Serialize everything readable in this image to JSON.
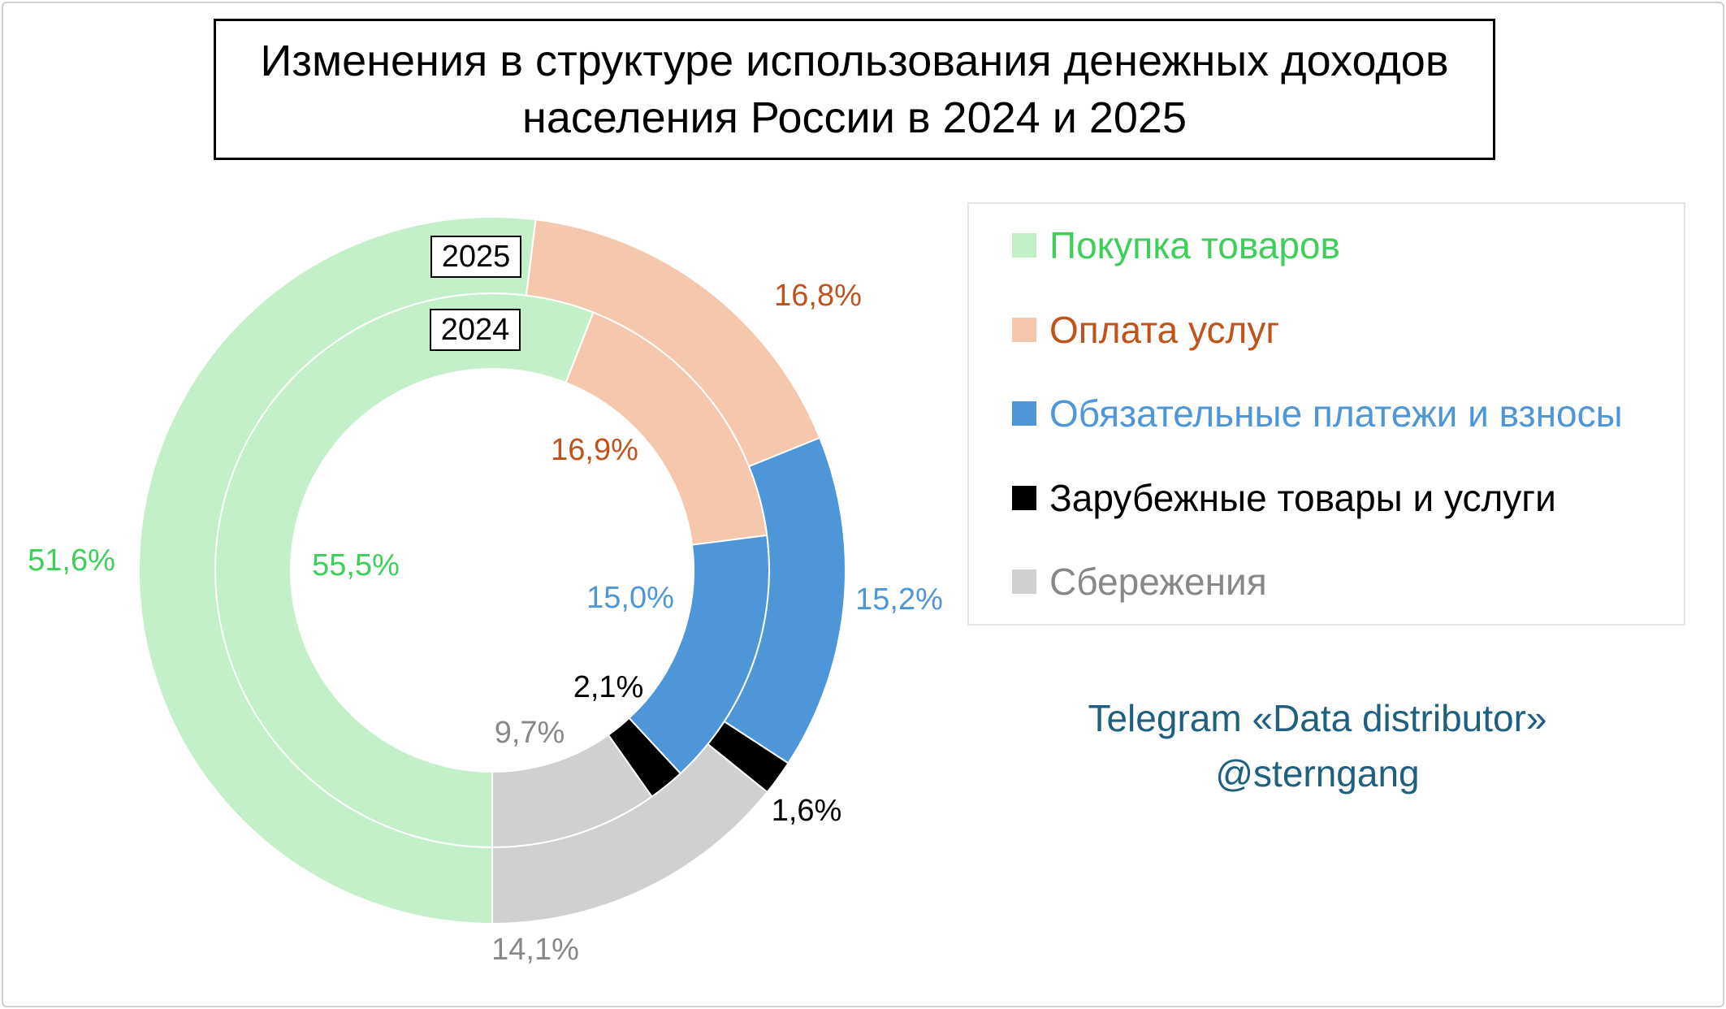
{
  "chart_data": {
    "type": "pie",
    "subtype": "donut",
    "title": "Изменения в структуре использования денежных доходов населения России в 2024 и 2025",
    "categories": [
      "Покупка товаров",
      "Оплата услуг",
      "Обязательные платежи и взносы",
      "Зарубежные товары и услуги",
      "Сбережения"
    ],
    "colors": [
      "#c3efc9",
      "#f5c7ac",
      "#4f96d9",
      "#000000",
      "#d0d0d0"
    ],
    "label_colors": [
      "#3ecf5a",
      "#c0531b",
      "#4f96d9",
      "#000000",
      "#888888"
    ],
    "series": [
      {
        "name": "2024",
        "ring": "inner",
        "values": [
          55.5,
          16.9,
          15.0,
          2.1,
          9.7
        ],
        "labels": [
          "55,5%",
          "16,9%",
          "15,0%",
          "2,1%",
          "9,7%"
        ]
      },
      {
        "name": "2025",
        "ring": "outer",
        "values": [
          51.6,
          16.8,
          15.2,
          1.6,
          14.1
        ],
        "labels": [
          "51,6%",
          "16,8%",
          "15,2%",
          "1,6%",
          "14,1%"
        ]
      }
    ],
    "legend_placement": "right"
  },
  "title_lines": [
    "Изменения в структуре использования денежных доходов",
    "населения России в 2024 и 2025"
  ],
  "credit": {
    "line1": "Telegram «Data distributor»",
    "line2": "@sterngang"
  }
}
